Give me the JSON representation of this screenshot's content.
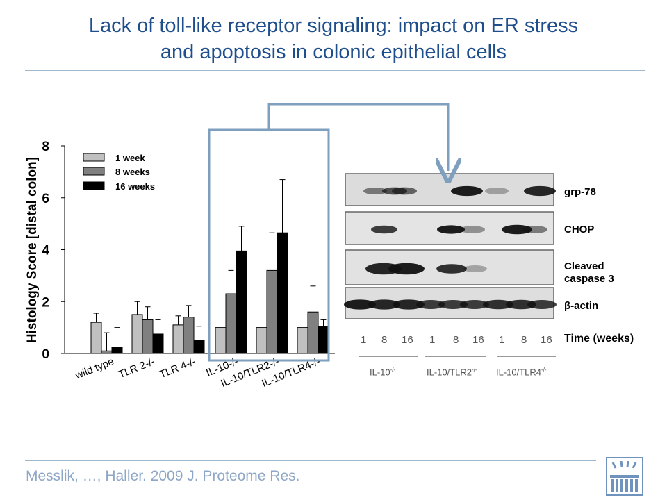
{
  "slide": {
    "title_line1": "Lack of toll-like receptor signaling: impact on ER stress",
    "title_line2": "and apoptosis in colonic epithelial cells",
    "citation": "Messlik, …, Haller. 2009 J. Proteome Res."
  },
  "chart_data": {
    "type": "bar",
    "ylabel": "Histology Score [distal colon]",
    "ylim": [
      0,
      8
    ],
    "yticks": [
      "0",
      "2",
      "4",
      "6",
      "8"
    ],
    "categories": [
      "wild type",
      "TLR 2-/-",
      "TLR 4-/-",
      "IL-10-/-",
      "IL-10/TLR2-/-",
      "IL-10/TLR4-/-"
    ],
    "legend_position": "top-left",
    "series": [
      {
        "name": "1 week",
        "color": "#c0c0c0",
        "values": [
          1.2,
          1.5,
          1.1,
          1.0,
          1.0,
          1.0
        ],
        "errors": [
          0.35,
          0.5,
          0.35,
          0.0,
          0.0,
          0.0
        ]
      },
      {
        "name": "8 weeks",
        "color": "#808080",
        "values": [
          0.1,
          1.3,
          1.4,
          2.3,
          3.2,
          1.6
        ],
        "errors": [
          0.7,
          0.5,
          0.45,
          0.9,
          1.45,
          1.0
        ]
      },
      {
        "name": "16 weeks",
        "color": "#000000",
        "values": [
          0.25,
          0.75,
          0.5,
          3.95,
          4.65,
          1.05
        ],
        "errors": [
          0.75,
          0.55,
          0.55,
          0.95,
          2.05,
          0.25
        ]
      }
    ]
  },
  "blot": {
    "rows": [
      "grp-78",
      "CHOP",
      "Cleaved caspase 3",
      "β-actin"
    ],
    "time_label": "Time (weeks)",
    "lanes": [
      "1",
      "8",
      "16",
      "1",
      "8",
      "16",
      "1",
      "8",
      "16"
    ],
    "genotypes": [
      {
        "name": "IL-10",
        "sup": "-/-"
      },
      {
        "name": "IL-10/TLR2",
        "sup": "-/-"
      },
      {
        "name": "IL-10/TLR4",
        "sup": "-/-"
      }
    ]
  }
}
